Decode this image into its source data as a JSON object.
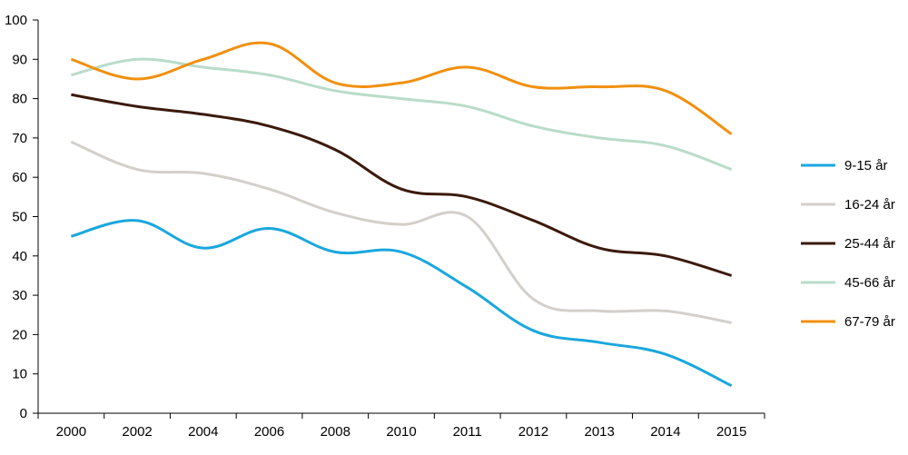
{
  "chart_data": {
    "type": "line",
    "title": "",
    "xlabel": "",
    "ylabel": "",
    "categories": [
      "2000",
      "2002",
      "2004",
      "2006",
      "2008",
      "2010",
      "2011",
      "2012",
      "2013",
      "2014",
      "2015"
    ],
    "ylim": [
      0,
      100
    ],
    "yticks": [
      0,
      10,
      20,
      30,
      40,
      50,
      60,
      70,
      80,
      90,
      100
    ],
    "grid": false,
    "legend_position": "right",
    "series": [
      {
        "name": "9-15 år",
        "color": "#1aa7dd",
        "values": [
          45,
          49,
          42,
          47,
          41,
          41,
          32,
          21,
          18,
          15,
          7
        ]
      },
      {
        "name": "16-24 år",
        "color": "#d3cfca",
        "values": [
          69,
          62,
          61,
          57,
          51,
          48,
          50,
          29,
          26,
          26,
          23
        ]
      },
      {
        "name": "25-44 år",
        "color": "#3b1a0c",
        "values": [
          81,
          78,
          76,
          73,
          67,
          57,
          55,
          49,
          42,
          40,
          35
        ]
      },
      {
        "name": "45-66 år",
        "color": "#b9dcc9",
        "values": [
          86,
          90,
          88,
          86,
          82,
          80,
          78,
          73,
          70,
          68,
          62
        ]
      },
      {
        "name": "67-79 år",
        "color": "#f0900f",
        "values": [
          90,
          85,
          90,
          94,
          84,
          84,
          88,
          83,
          83,
          82,
          71
        ]
      }
    ]
  }
}
